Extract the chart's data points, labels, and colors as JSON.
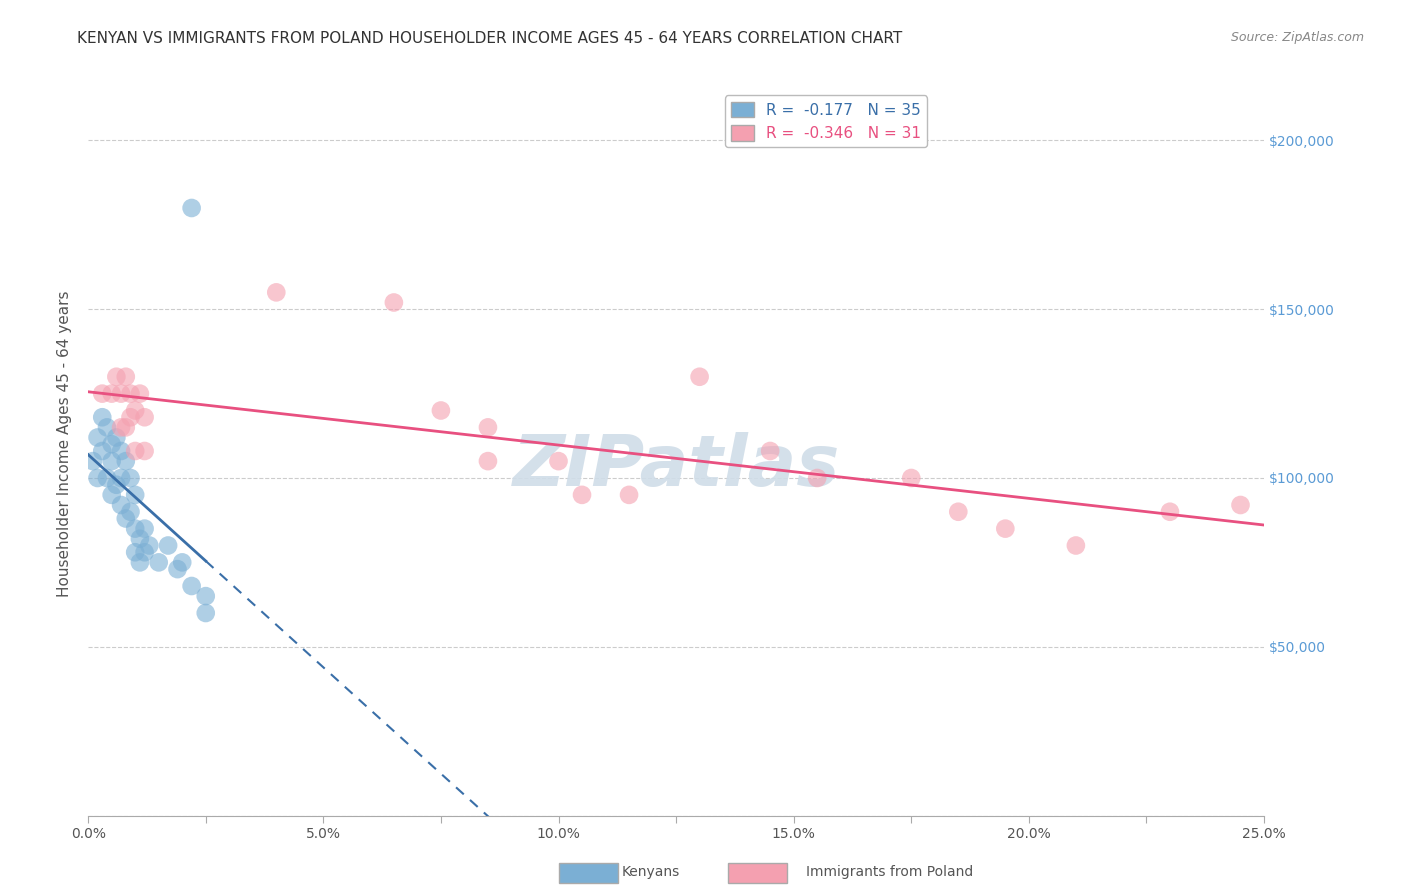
{
  "title": "KENYAN VS IMMIGRANTS FROM POLAND HOUSEHOLDER INCOME AGES 45 - 64 YEARS CORRELATION CHART",
  "source": "Source: ZipAtlas.com",
  "ylabel": "Householder Income Ages 45 - 64 years",
  "xlim": [
    0.0,
    0.25
  ],
  "ylim": [
    0,
    220000
  ],
  "yticks": [
    0,
    50000,
    100000,
    150000,
    200000
  ],
  "ytick_labels": [
    "",
    "$50,000",
    "$100,000",
    "$150,000",
    "$200,000"
  ],
  "xtick_labels": [
    "0.0%",
    "",
    "5.0%",
    "",
    "10.0%",
    "",
    "15.0%",
    "",
    "20.0%",
    "",
    "25.0%"
  ],
  "xticks": [
    0.0,
    0.025,
    0.05,
    0.075,
    0.1,
    0.125,
    0.15,
    0.175,
    0.2,
    0.225,
    0.25
  ],
  "kenyan_x": [
    0.001,
    0.002,
    0.002,
    0.003,
    0.003,
    0.004,
    0.004,
    0.005,
    0.005,
    0.005,
    0.006,
    0.006,
    0.007,
    0.007,
    0.007,
    0.008,
    0.008,
    0.009,
    0.009,
    0.01,
    0.01,
    0.01,
    0.011,
    0.011,
    0.012,
    0.012,
    0.013,
    0.015,
    0.017,
    0.019,
    0.02,
    0.022,
    0.025,
    0.025,
    0.022
  ],
  "kenyan_y": [
    105000,
    112000,
    100000,
    118000,
    108000,
    115000,
    100000,
    110000,
    95000,
    105000,
    112000,
    98000,
    108000,
    100000,
    92000,
    105000,
    88000,
    100000,
    90000,
    95000,
    85000,
    78000,
    82000,
    75000,
    85000,
    78000,
    80000,
    75000,
    80000,
    73000,
    75000,
    68000,
    65000,
    60000,
    180000
  ],
  "poland_x": [
    0.003,
    0.005,
    0.006,
    0.007,
    0.007,
    0.008,
    0.008,
    0.009,
    0.009,
    0.01,
    0.01,
    0.011,
    0.012,
    0.012,
    0.04,
    0.065,
    0.075,
    0.085,
    0.085,
    0.1,
    0.105,
    0.115,
    0.13,
    0.145,
    0.155,
    0.175,
    0.185,
    0.195,
    0.21,
    0.23,
    0.245
  ],
  "poland_y": [
    125000,
    125000,
    130000,
    125000,
    115000,
    130000,
    115000,
    125000,
    118000,
    120000,
    108000,
    125000,
    118000,
    108000,
    155000,
    152000,
    120000,
    115000,
    105000,
    105000,
    95000,
    95000,
    130000,
    108000,
    100000,
    100000,
    90000,
    85000,
    80000,
    90000,
    92000
  ],
  "kenyan_color": "#7bafd4",
  "poland_color": "#f4a0b0",
  "kenyan_line_color": "#3a6fa8",
  "poland_line_color": "#e85080",
  "background_color": "#ffffff",
  "grid_color": "#cccccc",
  "watermark_text": "ZIPatlas",
  "watermark_color": "#d0dde8",
  "title_fontsize": 11,
  "axis_label_fontsize": 11
}
